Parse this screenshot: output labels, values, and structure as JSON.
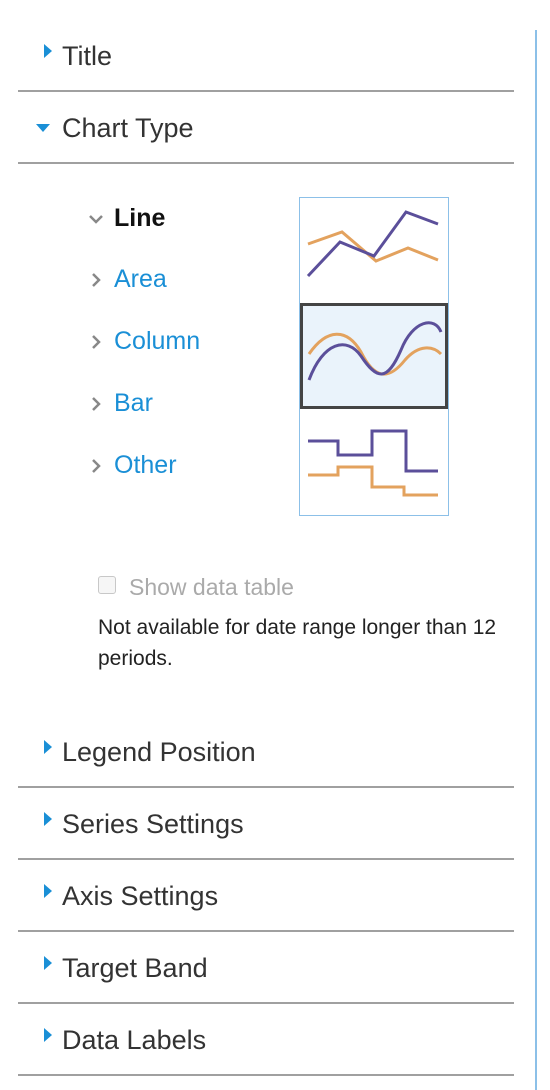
{
  "sections_top": [
    {
      "label": "Title",
      "open": false
    },
    {
      "label": "Chart Type",
      "open": true
    }
  ],
  "chart_type": {
    "items": [
      {
        "label": "Line",
        "selected": true
      },
      {
        "label": "Area",
        "selected": false
      },
      {
        "label": "Column",
        "selected": false
      },
      {
        "label": "Bar",
        "selected": false
      },
      {
        "label": "Other",
        "selected": false
      }
    ],
    "thumbnails": [
      {
        "icon": "line-chart-icon",
        "selected": false
      },
      {
        "icon": "smooth-line-chart-icon",
        "selected": true
      },
      {
        "icon": "step-line-chart-icon",
        "selected": false
      }
    ],
    "show_data_table": {
      "label": "Show data table",
      "checked": false,
      "disabled": true,
      "note": "Not available for date range longer than 12 periods."
    }
  },
  "sections_bottom": [
    {
      "label": "Legend Position",
      "open": false
    },
    {
      "label": "Series Settings",
      "open": false
    },
    {
      "label": "Axis Settings",
      "open": false
    },
    {
      "label": "Target Band",
      "open": false
    },
    {
      "label": "Data Labels",
      "open": false
    }
  ],
  "colors": {
    "accent": "#1a8fd6",
    "series_purple": "#5b4f9a",
    "series_orange": "#e3a25e",
    "divider": "#a0a0a0"
  }
}
